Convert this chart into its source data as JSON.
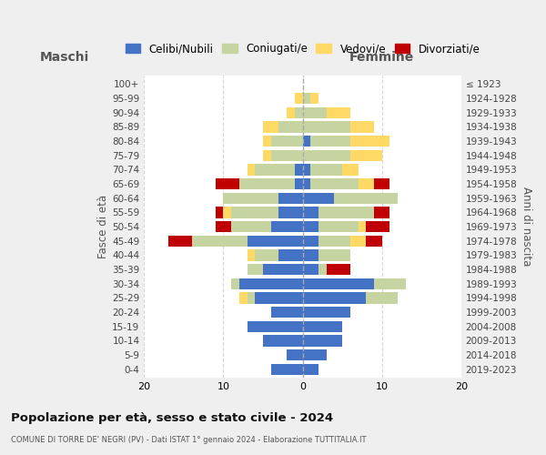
{
  "age_groups": [
    "0-4",
    "5-9",
    "10-14",
    "15-19",
    "20-24",
    "25-29",
    "30-34",
    "35-39",
    "40-44",
    "45-49",
    "50-54",
    "55-59",
    "60-64",
    "65-69",
    "70-74",
    "75-79",
    "80-84",
    "85-89",
    "90-94",
    "95-99",
    "100+"
  ],
  "birth_years": [
    "2019-2023",
    "2014-2018",
    "2009-2013",
    "2004-2008",
    "1999-2003",
    "1994-1998",
    "1989-1993",
    "1984-1988",
    "1979-1983",
    "1974-1978",
    "1969-1973",
    "1964-1968",
    "1959-1963",
    "1954-1958",
    "1949-1953",
    "1944-1948",
    "1939-1943",
    "1934-1938",
    "1929-1933",
    "1924-1928",
    "≤ 1923"
  ],
  "colors": {
    "celibi": "#4472C4",
    "coniugati": "#c5d4a0",
    "vedovi": "#ffd966",
    "divorziati": "#c00000"
  },
  "maschi": {
    "celibi": [
      4,
      2,
      5,
      7,
      4,
      6,
      8,
      5,
      3,
      7,
      4,
      3,
      3,
      1,
      1,
      0,
      0,
      0,
      0,
      0,
      0
    ],
    "coniugati": [
      0,
      0,
      0,
      0,
      0,
      1,
      1,
      2,
      3,
      7,
      5,
      6,
      7,
      7,
      5,
      4,
      4,
      3,
      1,
      0,
      0
    ],
    "vedovi": [
      0,
      0,
      0,
      0,
      0,
      1,
      0,
      0,
      1,
      0,
      0,
      1,
      0,
      0,
      1,
      1,
      1,
      2,
      1,
      1,
      0
    ],
    "divorziati": [
      0,
      0,
      0,
      0,
      0,
      0,
      0,
      0,
      0,
      3,
      2,
      1,
      0,
      3,
      0,
      0,
      0,
      0,
      0,
      0,
      0
    ]
  },
  "femmine": {
    "celibi": [
      2,
      3,
      5,
      5,
      6,
      8,
      9,
      2,
      2,
      2,
      2,
      2,
      4,
      1,
      1,
      0,
      1,
      0,
      0,
      0,
      0
    ],
    "coniugati": [
      0,
      0,
      0,
      0,
      0,
      4,
      4,
      1,
      4,
      4,
      5,
      7,
      8,
      6,
      4,
      6,
      5,
      6,
      3,
      1,
      0
    ],
    "vedovi": [
      0,
      0,
      0,
      0,
      0,
      0,
      0,
      0,
      0,
      2,
      1,
      0,
      0,
      2,
      2,
      4,
      5,
      3,
      3,
      1,
      0
    ],
    "divorziati": [
      0,
      0,
      0,
      0,
      0,
      0,
      0,
      3,
      0,
      2,
      3,
      2,
      0,
      2,
      0,
      0,
      0,
      0,
      0,
      0,
      0
    ]
  },
  "xlim": 20,
  "title": "Popolazione per età, sesso e stato civile - 2024",
  "subtitle": "COMUNE DI TORRE DE' NEGRI (PV) - Dati ISTAT 1° gennaio 2024 - Elaborazione TUTTITALIA.IT",
  "ylabel_left": "Fasce di età",
  "ylabel_right": "Anni di nascita",
  "maschi_label": "Maschi",
  "femmine_label": "Femmine",
  "legend_labels": [
    "Celibi/Nubili",
    "Coniugati/e",
    "Vedovi/e",
    "Divorziati/e"
  ],
  "bg_color": "#efefef",
  "bar_bg": "#ffffff"
}
